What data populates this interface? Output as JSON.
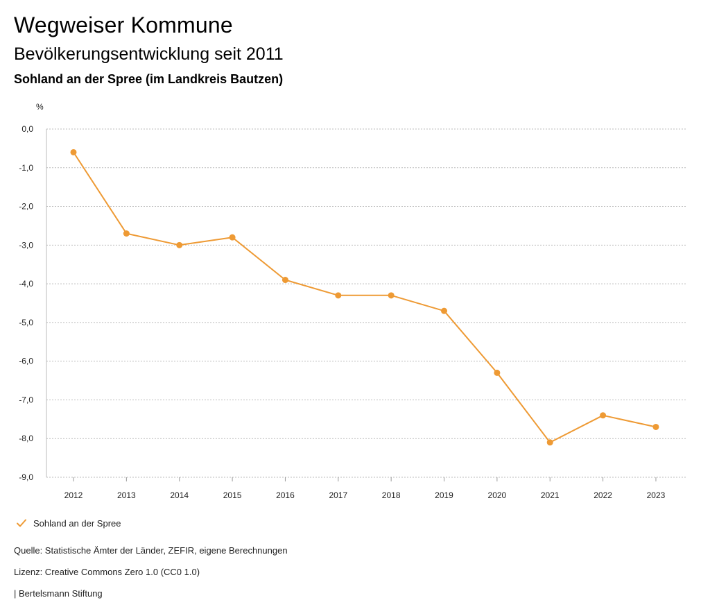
{
  "header": {
    "title": "Wegweiser Kommune",
    "subtitle": "Bevölkerungsentwicklung seit 2011",
    "region": "Sohland an der Spree (im Landkreis Bautzen)"
  },
  "legend": {
    "label": "Sohland an der Spree"
  },
  "footer": {
    "source": "Quelle: Statistische Ämter der Länder, ZEFIR, eigene Berechnungen",
    "license": "Lizenz: Creative Commons Zero 1.0 (CC0 1.0)",
    "publisher": "| Bertelsmann Stiftung"
  },
  "colors": {
    "series": "#ee9a34",
    "grid": "#bbbbbb",
    "axis": "#999999"
  },
  "chart_data": {
    "type": "line",
    "title": "Bevölkerungsentwicklung seit 2011",
    "ylabel": "%",
    "xlabel": "",
    "ylim": [
      -9,
      0
    ],
    "yticks": [
      0,
      -1,
      -2,
      -3,
      -4,
      -5,
      -6,
      -7,
      -8,
      -9
    ],
    "ytick_labels": [
      "0,0",
      "-1,0",
      "-2,0",
      "-3,0",
      "-4,0",
      "-5,0",
      "-6,0",
      "-7,0",
      "-8,0",
      "-9,0"
    ],
    "categories": [
      "2012",
      "2013",
      "2014",
      "2015",
      "2016",
      "2017",
      "2018",
      "2019",
      "2020",
      "2021",
      "2022",
      "2023"
    ],
    "series": [
      {
        "name": "Sohland an der Spree",
        "values": [
          -0.6,
          -2.7,
          -3.0,
          -2.8,
          -3.9,
          -4.3,
          -4.3,
          -4.7,
          -6.3,
          -8.1,
          -7.4,
          -7.7
        ]
      }
    ],
    "grid": true
  }
}
